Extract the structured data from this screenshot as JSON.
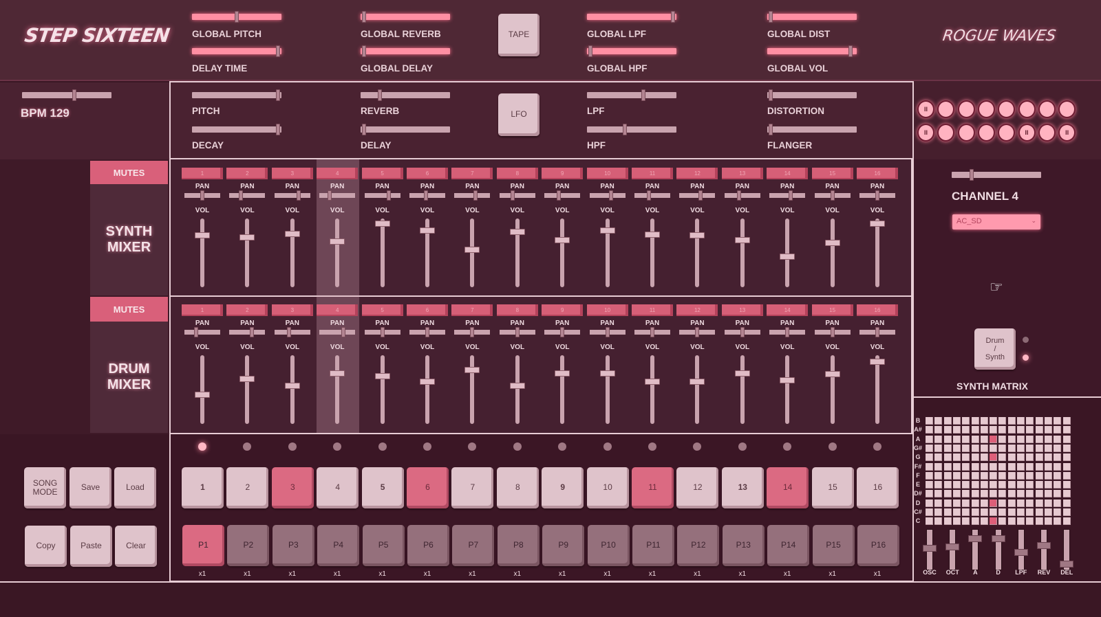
{
  "app": {
    "title": "STEP SIXTEEN",
    "brand": "ROGUE WAVES"
  },
  "colors": {
    "bg": "#3a1724",
    "accent": "#ff8fa3",
    "active_step": "#db6a82",
    "mute": "#d65f77"
  },
  "global_controls": [
    {
      "label": "GLOBAL PITCH",
      "value": 0.5
    },
    {
      "label": "DELAY TIME",
      "value": 0.98
    },
    {
      "label": "GLOBAL REVERB",
      "value": 0.02
    },
    {
      "label": "GLOBAL DELAY",
      "value": 0.02
    },
    {
      "label": "GLOBAL LPF",
      "value": 0.98
    },
    {
      "label": "GLOBAL HPF",
      "value": 0.02
    },
    {
      "label": "GLOBAL DIST",
      "value": 0.02
    },
    {
      "label": "GLOBAL VOL",
      "value": 0.95
    }
  ],
  "tape_button": "TAPE",
  "lfo_button": "LFO",
  "bpm": {
    "label": "BPM 129",
    "value": 129
  },
  "channel_fx": [
    {
      "label": "PITCH",
      "value": 0.98
    },
    {
      "label": "DECAY",
      "value": 0.98
    },
    {
      "label": "REVERB",
      "value": 0.2
    },
    {
      "label": "DELAY",
      "value": 0.02
    },
    {
      "label": "LPF",
      "value": 0.64
    },
    {
      "label": "HPF",
      "value": 0.42
    },
    {
      "label": "DISTORTION",
      "value": 0.02
    },
    {
      "label": "FLANGER",
      "value": 0.02
    }
  ],
  "lfo_circles": {
    "row1": [
      "II",
      "",
      "",
      "",
      "",
      "",
      "",
      ""
    ],
    "row2": [
      "II",
      "",
      "",
      "",
      "",
      "II",
      "",
      "II"
    ]
  },
  "synth_mixer": {
    "title_line1": "SYNTH",
    "title_line2": "MIXER",
    "mutes_label": "MUTES",
    "pan_label": "PAN",
    "vol_label": "VOL",
    "channels": [
      "1",
      "2",
      "3",
      "4",
      "5",
      "6",
      "7",
      "8",
      "9",
      "10",
      "11",
      "12",
      "13",
      "14",
      "15",
      "16"
    ],
    "pan": [
      0.5,
      0.3,
      0.7,
      0.25,
      0.7,
      0.45,
      0.6,
      0.35,
      0.4,
      0.6,
      0.4,
      0.6,
      0.4,
      0.6,
      0.5,
      0.5
    ],
    "vol": [
      0.22,
      0.25,
      0.2,
      0.32,
      0.03,
      0.14,
      0.45,
      0.16,
      0.29,
      0.14,
      0.21,
      0.22,
      0.29,
      0.55,
      0.34,
      0.03
    ]
  },
  "drum_mixer": {
    "title_line1": "DRUM",
    "title_line2": "MIXER",
    "mutes_label": "MUTES",
    "pan_label": "PAN",
    "vol_label": "VOL",
    "channels": [
      "1",
      "2",
      "3",
      "4",
      "5",
      "6",
      "7",
      "8",
      "9",
      "10",
      "11",
      "12",
      "13",
      "14",
      "15",
      "16"
    ],
    "pan": [
      0.3,
      0.65,
      0.4,
      0.7,
      0.5,
      0.5,
      0.5,
      0.5,
      0.5,
      0.5,
      0.5,
      0.5,
      0.5,
      0.5,
      0.5,
      0.5
    ],
    "vol": [
      0.58,
      0.33,
      0.43,
      0.24,
      0.28,
      0.37,
      0.19,
      0.43,
      0.24,
      0.24,
      0.37,
      0.37,
      0.24,
      0.35,
      0.25,
      0.05
    ]
  },
  "selected_channel": 4,
  "channel_panel": {
    "label": "CHANNEL 4",
    "slider": 0.2,
    "sample": "AC_SD"
  },
  "drum_synth_button": {
    "line1": "Drum",
    "line2": "/",
    "line3": "Synth"
  },
  "synth_matrix": {
    "label": "SYNTH MATRIX",
    "notes": [
      "B",
      "A#",
      "A",
      "G#",
      "G",
      "F#",
      "F",
      "E",
      "D#",
      "D",
      "C#",
      "C"
    ],
    "active": [
      [
        2,
        7
      ],
      [
        4,
        7
      ],
      [
        9,
        7
      ],
      [
        11,
        7
      ]
    ],
    "knobs": [
      {
        "label": "OSC",
        "value": 0.55
      },
      {
        "label": "OCT",
        "value": 0.6
      },
      {
        "label": "A",
        "value": 0.85
      },
      {
        "label": "D",
        "value": 0.85
      },
      {
        "label": "LPF",
        "value": 0.45
      },
      {
        "label": "REV",
        "value": 0.65
      },
      {
        "label": "DEL",
        "value": 0.1
      }
    ]
  },
  "left_buttons": {
    "song_mode": "SONG MODE",
    "save": "Save",
    "load": "Load",
    "copy": "Copy",
    "paste": "Paste",
    "clear": "Clear"
  },
  "playhead": 1,
  "steps": [
    {
      "label": "1",
      "on": false
    },
    {
      "label": "2",
      "on": false
    },
    {
      "label": "3",
      "on": true
    },
    {
      "label": "4",
      "on": false
    },
    {
      "label": "5",
      "on": false
    },
    {
      "label": "6",
      "on": true
    },
    {
      "label": "7",
      "on": false
    },
    {
      "label": "8",
      "on": false
    },
    {
      "label": "9",
      "on": false
    },
    {
      "label": "10",
      "on": false
    },
    {
      "label": "11",
      "on": true
    },
    {
      "label": "12",
      "on": false
    },
    {
      "label": "13",
      "on": false
    },
    {
      "label": "14",
      "on": true
    },
    {
      "label": "15",
      "on": false
    },
    {
      "label": "16",
      "on": false
    }
  ],
  "patterns": [
    {
      "label": "P1",
      "mult": "x1",
      "on": true
    },
    {
      "label": "P2",
      "mult": "x1"
    },
    {
      "label": "P3",
      "mult": "x1"
    },
    {
      "label": "P4",
      "mult": "x1"
    },
    {
      "label": "P5",
      "mult": "x1"
    },
    {
      "label": "P6",
      "mult": "x1"
    },
    {
      "label": "P7",
      "mult": "x1"
    },
    {
      "label": "P8",
      "mult": "x1"
    },
    {
      "label": "P9",
      "mult": "x1"
    },
    {
      "label": "P10",
      "mult": "x1"
    },
    {
      "label": "P11",
      "mult": "x1"
    },
    {
      "label": "P12",
      "mult": "x1"
    },
    {
      "label": "P13",
      "mult": "x1"
    },
    {
      "label": "P14",
      "mult": "x1"
    },
    {
      "label": "P15",
      "mult": "x1"
    },
    {
      "label": "P16",
      "mult": "x1"
    }
  ]
}
